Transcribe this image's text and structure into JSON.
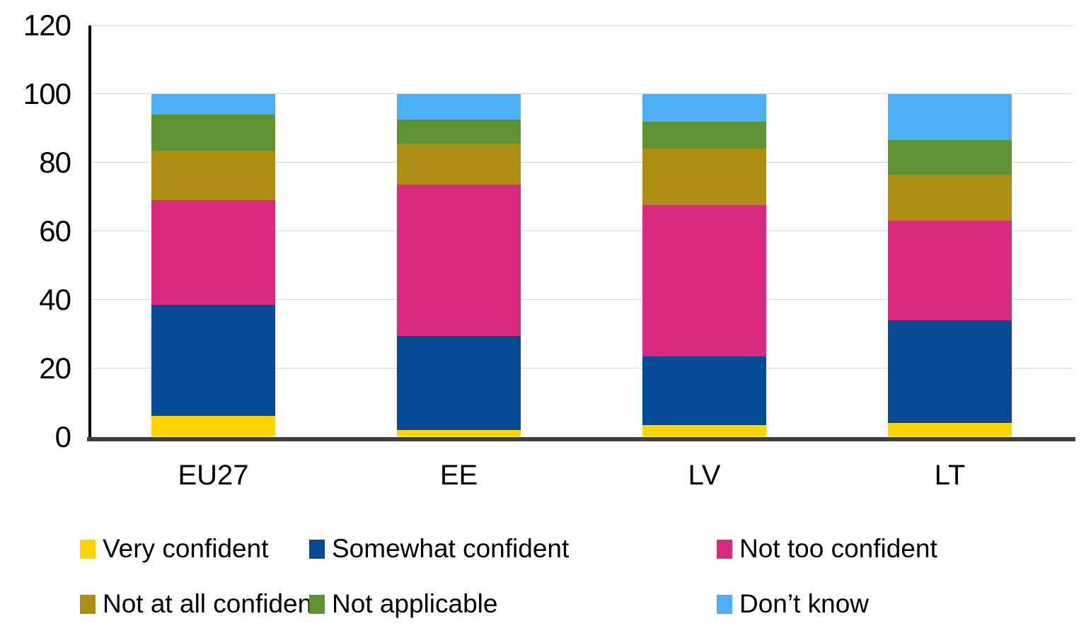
{
  "chart_data": {
    "type": "bar",
    "subtype": "stacked-column",
    "title": "",
    "xlabel": "",
    "ylabel": "",
    "categories": [
      "EU27",
      "EE",
      "LV",
      "LT"
    ],
    "series": [
      {
        "name": "Very confident",
        "color": "#FFD400",
        "values": [
          6,
          2,
          3.5,
          4
        ]
      },
      {
        "name": "Somewhat confident",
        "color": "#054A94",
        "values": [
          32.5,
          27.5,
          20,
          30
        ]
      },
      {
        "name": "Not too confident",
        "color": "#D92A80",
        "values": [
          30.5,
          44,
          44,
          29
        ]
      },
      {
        "name": "Not at all confident",
        "color": "#AD8D12",
        "values": [
          14.5,
          12,
          16.5,
          13.5
        ]
      },
      {
        "name": "Not applicable",
        "color": "#5E9233",
        "values": [
          10.5,
          7,
          8,
          10
        ]
      },
      {
        "name": "Don’t know",
        "color": "#4DAFF7",
        "values": [
          6,
          7.5,
          8,
          13.5
        ]
      }
    ],
    "ylim": [
      0,
      120
    ],
    "yticks": [
      0,
      20,
      40,
      60,
      80,
      100,
      120
    ],
    "grid": true,
    "legend_position": "bottom",
    "axis_colors": {
      "y_axis_line": "#000000",
      "x_axis_line": "#3f3f3f",
      "gridline": "#d9d9d9"
    }
  }
}
